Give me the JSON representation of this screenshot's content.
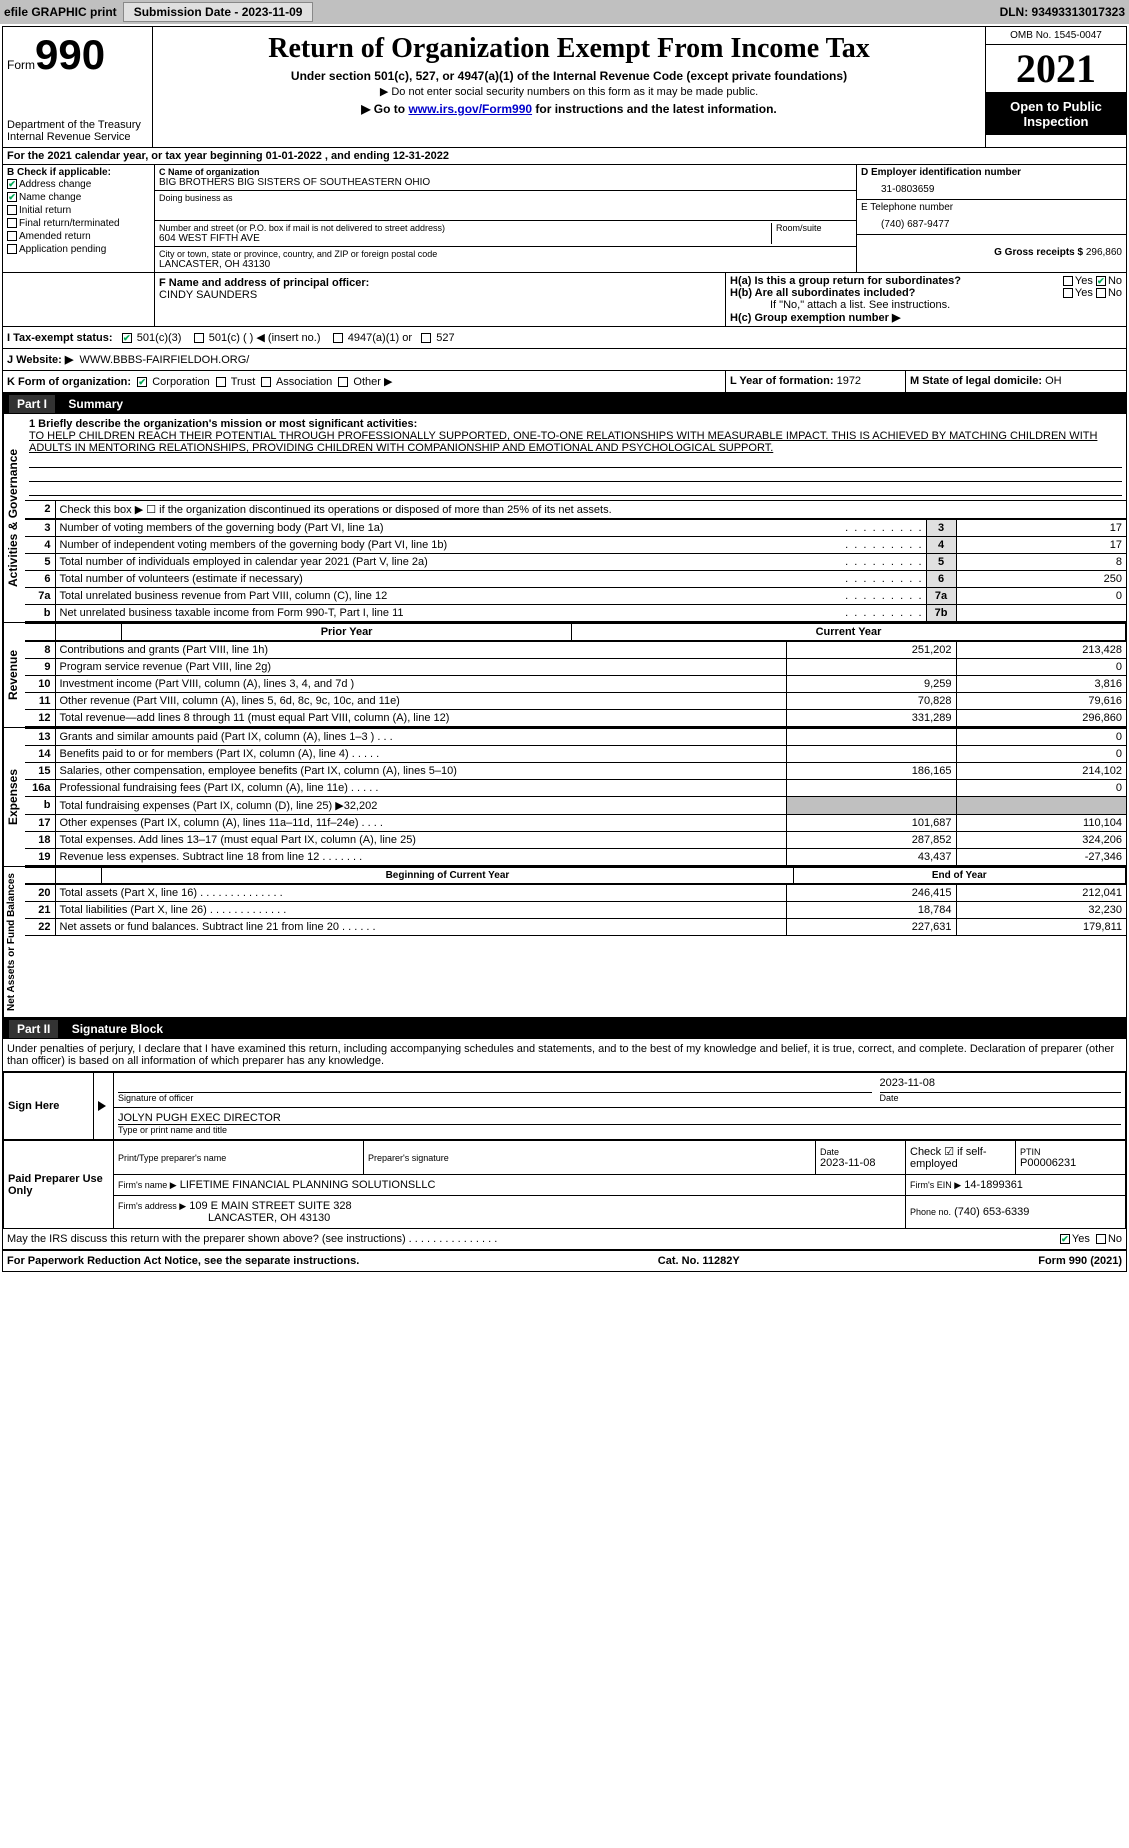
{
  "topbar": {
    "efile": "efile GRAPHIC print",
    "submission_btn": "Submission Date - 2023-11-09",
    "dln_label": "DLN: 93493313017323"
  },
  "header": {
    "form_label": "Form",
    "form_number": "990",
    "dept": "Department of the Treasury",
    "irs": "Internal Revenue Service",
    "title": "Return of Organization Exempt From Income Tax",
    "subtitle": "Under section 501(c), 527, or 4947(a)(1) of the Internal Revenue Code (except private foundations)",
    "note1": "▶ Do not enter social security numbers on this form as it may be made public.",
    "note2_pre": "▶ Go to ",
    "note2_link": "www.irs.gov/Form990",
    "note2_post": " for instructions and the latest information.",
    "omb": "OMB No. 1545-0047",
    "year": "2021",
    "inspection": "Open to Public Inspection"
  },
  "line_a": "For the 2021 calendar year, or tax year beginning 01-01-2022    , and ending 12-31-2022",
  "section_b": {
    "label": "B Check if applicable:",
    "items": [
      {
        "label": "Address change",
        "checked": true
      },
      {
        "label": "Name change",
        "checked": true
      },
      {
        "label": "Initial return",
        "checked": false
      },
      {
        "label": "Final return/terminated",
        "checked": false
      },
      {
        "label": "Amended return",
        "checked": false
      },
      {
        "label": "Application pending",
        "checked": false
      }
    ]
  },
  "section_c": {
    "name_label": "C Name of organization",
    "name": "BIG BROTHERS BIG SISTERS OF SOUTHEASTERN OHIO",
    "dba_label": "Doing business as",
    "dba": "",
    "street_label": "Number and street (or P.O. box if mail is not delivered to street address)",
    "room_label": "Room/suite",
    "street": "604 WEST FIFTH AVE",
    "city_label": "City or town, state or province, country, and ZIP or foreign postal code",
    "city": "LANCASTER, OH  43130"
  },
  "section_d": {
    "label": "D Employer identification number",
    "value": "31-0803659"
  },
  "section_e": {
    "label": "E Telephone number",
    "value": "(740) 687-9477"
  },
  "section_g": {
    "label": "G Gross receipts $",
    "value": "296,860"
  },
  "section_f": {
    "label": "F  Name and address of principal officer:",
    "name": "CINDY SAUNDERS"
  },
  "section_h": {
    "ha": "H(a)  Is this a group return for subordinates?",
    "hb": "H(b)  Are all subordinates included?",
    "hb_note": "If \"No,\" attach a list. See instructions.",
    "hc": "H(c)  Group exemption number ▶",
    "yes": "Yes",
    "no": "No",
    "ha_answer": "No"
  },
  "section_i": {
    "label": "I    Tax-exempt status:",
    "opts": [
      "501(c)(3)",
      "501(c) (   ) ◀ (insert no.)",
      "4947(a)(1) or",
      "527"
    ],
    "checked_index": 0
  },
  "section_j": {
    "label": "J    Website: ▶",
    "value": "WWW.BBBS-FAIRFIELDOH.ORG/"
  },
  "section_k": {
    "label": "K Form of organization:",
    "opts": [
      "Corporation",
      "Trust",
      "Association",
      "Other ▶"
    ],
    "checked_index": 0
  },
  "section_l": {
    "label": "L Year of formation:",
    "value": "1972"
  },
  "section_m": {
    "label": "M State of legal domicile:",
    "value": "OH"
  },
  "part1": {
    "header_num": "Part I",
    "header_title": "Summary",
    "vert_activities": "Activities & Governance",
    "vert_revenue": "Revenue",
    "vert_expenses": "Expenses",
    "vert_netassets": "Net Assets or Fund Balances",
    "line1_label": "1  Briefly describe the organization's mission or most significant activities:",
    "line1_text": "TO HELP CHILDREN REACH THEIR POTENTIAL THROUGH PROFESSIONALLY SUPPORTED, ONE-TO-ONE RELATIONSHIPS WITH MEASURABLE IMPACT. THIS IS ACHIEVED BY MATCHING CHILDREN WITH ADULTS IN MENTORING RELATIONSHIPS, PROVIDING CHILDREN WITH COMPANIONSHIP AND EMOTIONAL AND PSYCHOLOGICAL SUPPORT.",
    "line2": "Check this box ▶ ☐  if the organization discontinued its operations or disposed of more than 25% of its net assets.",
    "rows_gov": [
      {
        "n": "3",
        "t": "Number of voting members of the governing body (Part VI, line 1a)",
        "box": "3",
        "v": "17"
      },
      {
        "n": "4",
        "t": "Number of independent voting members of the governing body (Part VI, line 1b)",
        "box": "4",
        "v": "17"
      },
      {
        "n": "5",
        "t": "Total number of individuals employed in calendar year 2021 (Part V, line 2a)",
        "box": "5",
        "v": "8"
      },
      {
        "n": "6",
        "t": "Total number of volunteers (estimate if necessary)",
        "box": "6",
        "v": "250"
      },
      {
        "n": "7a",
        "t": "Total unrelated business revenue from Part VIII, column (C), line 12",
        "box": "7a",
        "v": "0"
      },
      {
        "n": "b",
        "t": "Net unrelated business taxable income from Form 990-T, Part I, line 11",
        "box": "7b",
        "v": ""
      }
    ],
    "col_prior": "Prior Year",
    "col_current": "Current Year",
    "rows_rev": [
      {
        "n": "8",
        "t": "Contributions and grants (Part VIII, line 1h)",
        "p": "251,202",
        "c": "213,428"
      },
      {
        "n": "9",
        "t": "Program service revenue (Part VIII, line 2g)",
        "p": "",
        "c": "0"
      },
      {
        "n": "10",
        "t": "Investment income (Part VIII, column (A), lines 3, 4, and 7d )",
        "p": "9,259",
        "c": "3,816"
      },
      {
        "n": "11",
        "t": "Other revenue (Part VIII, column (A), lines 5, 6d, 8c, 9c, 10c, and 11e)",
        "p": "70,828",
        "c": "79,616"
      },
      {
        "n": "12",
        "t": "Total revenue—add lines 8 through 11 (must equal Part VIII, column (A), line 12)",
        "p": "331,289",
        "c": "296,860"
      }
    ],
    "rows_exp": [
      {
        "n": "13",
        "t": "Grants and similar amounts paid (Part IX, column (A), lines 1–3 )   .    .    .",
        "p": "",
        "c": "0"
      },
      {
        "n": "14",
        "t": "Benefits paid to or for members (Part IX, column (A), line 4)   .    .    .    .    .",
        "p": "",
        "c": "0"
      },
      {
        "n": "15",
        "t": "Salaries, other compensation, employee benefits (Part IX, column (A), lines 5–10)",
        "p": "186,165",
        "c": "214,102"
      },
      {
        "n": "16a",
        "t": "Professional fundraising fees (Part IX, column (A), line 11e)   .    .    .    .    .",
        "p": "",
        "c": "0"
      },
      {
        "n": "b",
        "t": "Total fundraising expenses (Part IX, column (D), line 25) ▶32,202",
        "p": "SHADE",
        "c": "SHADE"
      },
      {
        "n": "17",
        "t": "Other expenses (Part IX, column (A), lines 11a–11d, 11f–24e)   .    .    .    .",
        "p": "101,687",
        "c": "110,104"
      },
      {
        "n": "18",
        "t": "Total expenses. Add lines 13–17 (must equal Part IX, column (A), line 25)",
        "p": "287,852",
        "c": "324,206"
      },
      {
        "n": "19",
        "t": "Revenue less expenses. Subtract line 18 from line 12   .    .    .    .    .    .    .",
        "p": "43,437",
        "c": "-27,346"
      }
    ],
    "col_begin": "Beginning of Current Year",
    "col_end": "End of Year",
    "rows_net": [
      {
        "n": "20",
        "t": "Total assets (Part X, line 16)   .    .    .    .    .    .    .    .    .    .    .    .    .    .",
        "p": "246,415",
        "c": "212,041"
      },
      {
        "n": "21",
        "t": "Total liabilities (Part X, line 26)   .    .    .    .    .    .    .    .    .    .    .    .    .",
        "p": "18,784",
        "c": "32,230"
      },
      {
        "n": "22",
        "t": "Net assets or fund balances. Subtract line 21 from line 20   .    .    .    .    .    .",
        "p": "227,631",
        "c": "179,811"
      }
    ]
  },
  "part2": {
    "header_num": "Part II",
    "header_title": "Signature Block",
    "perjury": "Under penalties of perjury, I declare that I have examined this return, including accompanying schedules and statements, and to the best of my knowledge and belief, it is true, correct, and complete. Declaration of preparer (other than officer) is based on all information of which preparer has any knowledge.",
    "sign_here": "Sign Here",
    "sig_officer_label": "Signature of officer",
    "sig_date": "2023-11-08",
    "date_label": "Date",
    "officer_name": "JOLYN PUGH  EXEC DIRECTOR",
    "officer_name_label": "Type or print name and title",
    "paid": "Paid Preparer Use Only",
    "prep_name_label": "Print/Type preparer's name",
    "prep_sig_label": "Preparer's signature",
    "prep_date_label": "Date",
    "prep_date": "2023-11-08",
    "check_if_label": "Check ☑ if self-employed",
    "ptin_label": "PTIN",
    "ptin": "P00006231",
    "firm_name_label": "Firm's name    ▶",
    "firm_name": "LIFETIME FINANCIAL PLANNING SOLUTIONSLLC",
    "firm_ein_label": "Firm's EIN ▶",
    "firm_ein": "14-1899361",
    "firm_addr_label": "Firm's address ▶",
    "firm_addr1": "109 E MAIN STREET SUITE 328",
    "firm_addr2": "LANCASTER, OH  43130",
    "phone_label": "Phone no.",
    "phone": "(740) 653-6339",
    "discuss": "May the IRS discuss this return with the preparer shown above? (see instructions)   .    .    .    .    .    .    .    .    .    .    .    .    .    .    .",
    "discuss_answer": "Yes"
  },
  "footer": {
    "left": "For Paperwork Reduction Act Notice, see the separate instructions.",
    "mid": "Cat. No. 11282Y",
    "right": "Form 990 (2021)"
  }
}
